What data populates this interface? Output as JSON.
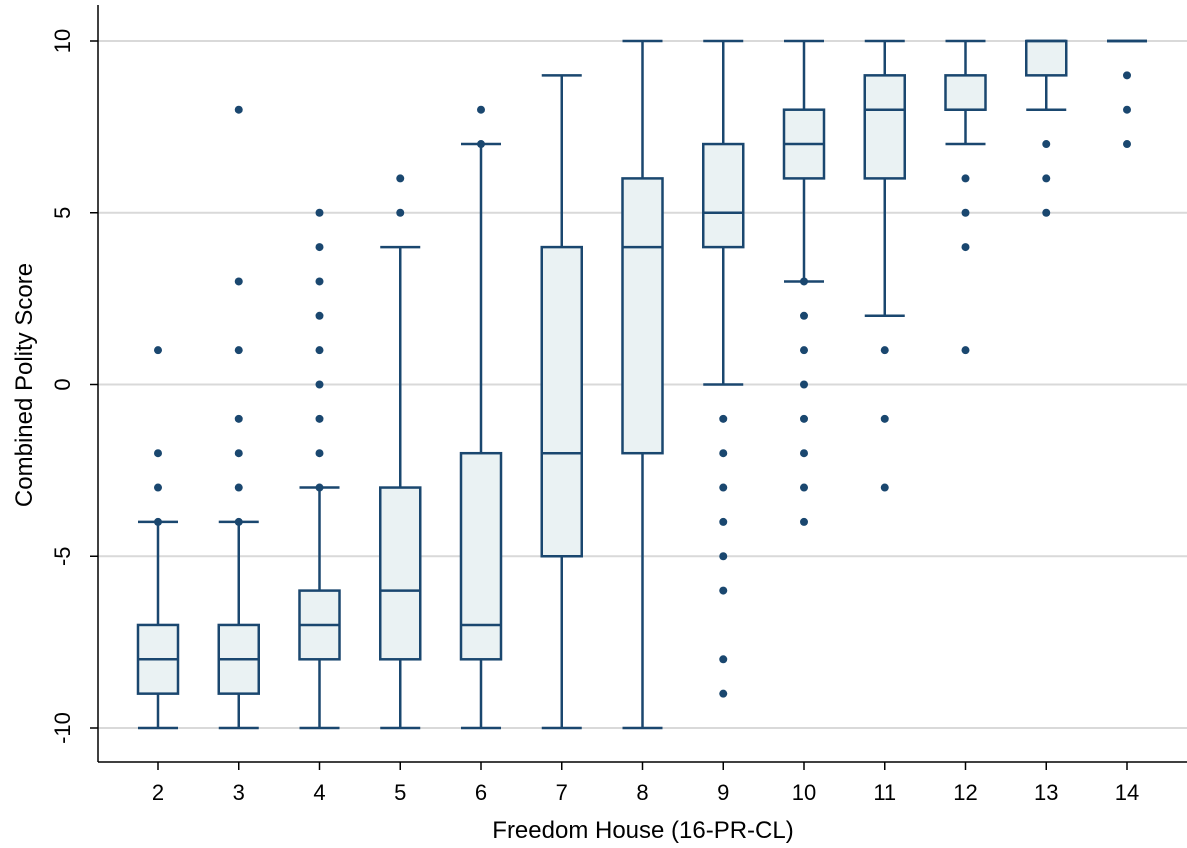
{
  "chart_data": {
    "type": "boxplot",
    "xlabel": "Freedom House (16-PR-CL)",
    "ylabel": "Combined Polity Score",
    "categories": [
      "2",
      "3",
      "4",
      "5",
      "6",
      "7",
      "8",
      "9",
      "10",
      "11",
      "12",
      "13",
      "14"
    ],
    "ylim": [
      -10.6,
      11
    ],
    "yticks": [
      -10,
      -5,
      0,
      5,
      10
    ],
    "grid": true,
    "legend": "none",
    "colors": {
      "box_fill": "#eaf2f3",
      "box_stroke": "#1a476f",
      "grid": "#d9d9d9",
      "axis": "#000000"
    },
    "boxes": [
      {
        "x": "2",
        "whisker_low": -10,
        "q1": -9,
        "median": -8,
        "q3": -7,
        "whisker_high": -4,
        "outliers": [
          1,
          -2,
          -3,
          -4
        ]
      },
      {
        "x": "3",
        "whisker_low": -10,
        "q1": -9,
        "median": -8,
        "q3": -7,
        "whisker_high": -4,
        "outliers": [
          8,
          3,
          1,
          -1,
          -2,
          -3,
          -4
        ]
      },
      {
        "x": "4",
        "whisker_low": -10,
        "q1": -8,
        "median": -7,
        "q3": -6,
        "whisker_high": -3,
        "outliers": [
          5,
          4,
          3,
          2,
          1,
          0,
          -1,
          -2,
          -3
        ]
      },
      {
        "x": "5",
        "whisker_low": -10,
        "q1": -8,
        "median": -6,
        "q3": -3,
        "whisker_high": 4,
        "outliers": [
          6,
          5
        ]
      },
      {
        "x": "6",
        "whisker_low": -10,
        "q1": -8,
        "median": -7,
        "q3": -2,
        "whisker_high": 7,
        "outliers": [
          8,
          7
        ]
      },
      {
        "x": "7",
        "whisker_low": -10,
        "q1": -5,
        "median": -2,
        "q3": 4,
        "whisker_high": 9,
        "outliers": []
      },
      {
        "x": "8",
        "whisker_low": -10,
        "q1": -2,
        "median": 4,
        "q3": 6,
        "whisker_high": 10,
        "outliers": []
      },
      {
        "x": "9",
        "whisker_low": 0,
        "q1": 4,
        "median": 5,
        "q3": 7,
        "whisker_high": 10,
        "outliers": [
          -1,
          -2,
          -3,
          -4,
          -5,
          -6,
          -8,
          -9
        ]
      },
      {
        "x": "10",
        "whisker_low": 3,
        "q1": 6,
        "median": 7,
        "q3": 8,
        "whisker_high": 10,
        "outliers": [
          3,
          2,
          1,
          0,
          -1,
          -2,
          -3,
          -4
        ]
      },
      {
        "x": "11",
        "whisker_low": 2,
        "q1": 6,
        "median": 8,
        "q3": 9,
        "whisker_high": 10,
        "outliers": [
          1,
          -1,
          -3
        ]
      },
      {
        "x": "12",
        "whisker_low": 7,
        "q1": 8,
        "median": 8,
        "q3": 9,
        "whisker_high": 10,
        "outliers": [
          6,
          5,
          4,
          1
        ]
      },
      {
        "x": "13",
        "whisker_low": 8,
        "q1": 9,
        "median": 10,
        "q3": 10,
        "whisker_high": 10,
        "outliers": [
          7,
          6,
          5
        ]
      },
      {
        "x": "14",
        "whisker_low": 10,
        "q1": 10,
        "median": 10,
        "q3": 10,
        "whisker_high": 10,
        "outliers": [
          9,
          8,
          7
        ]
      }
    ]
  }
}
